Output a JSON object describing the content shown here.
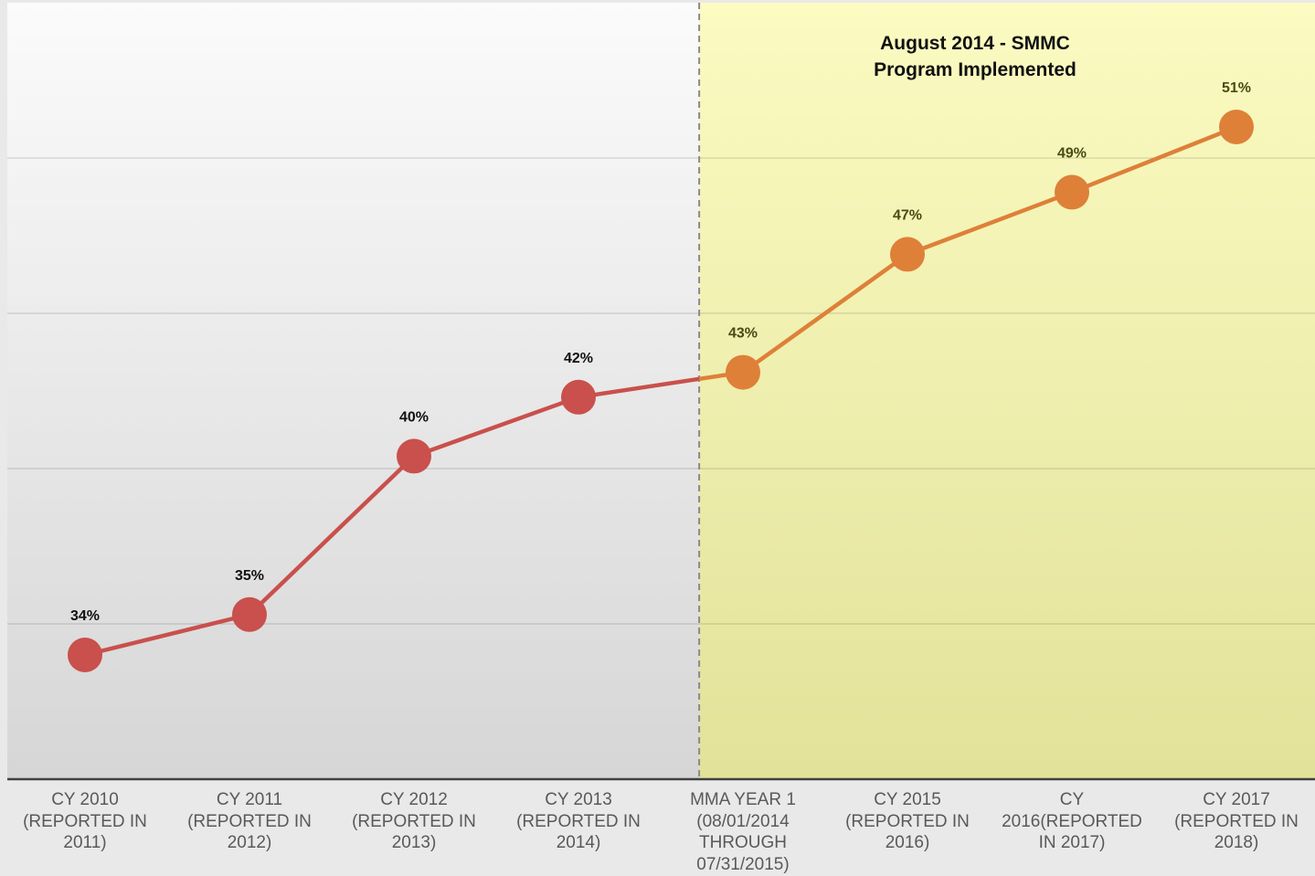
{
  "chart_data": {
    "type": "line",
    "annotation": [
      "August 2014 - SMMC",
      "Program Implemented"
    ],
    "categories": [
      "CY 2010 (REPORTED IN 2011)",
      "CY 2011 (REPORTED IN 2012)",
      "CY 2012 (REPORTED IN 2013)",
      "CY 2013 (REPORTED IN 2014)",
      "MMA YEAR 1 (08/01/2014 THROUGH 07/31/2015)",
      "CY 2015 (REPORTED IN 2016)",
      "CY 2016(REPORTED IN 2017)",
      "CY 2017 (REPORTED IN 2018)"
    ],
    "series": [
      {
        "values": [
          34.0,
          35.3,
          40.4,
          42.3,
          43.1,
          46.9,
          48.9,
          51.0
        ],
        "value_labels": [
          "34%",
          "35%",
          "40%",
          "42%",
          "43%",
          "47%",
          "49%",
          "51%"
        ],
        "colors": [
          "#c9504c",
          "#c9504c",
          "#c9504c",
          "#c9504c",
          "#de8038",
          "#de8038",
          "#de8038",
          "#de8038"
        ]
      }
    ],
    "ylim": [
      30,
      55
    ],
    "yticks": [
      35,
      40,
      45,
      50
    ],
    "grid": true
  }
}
